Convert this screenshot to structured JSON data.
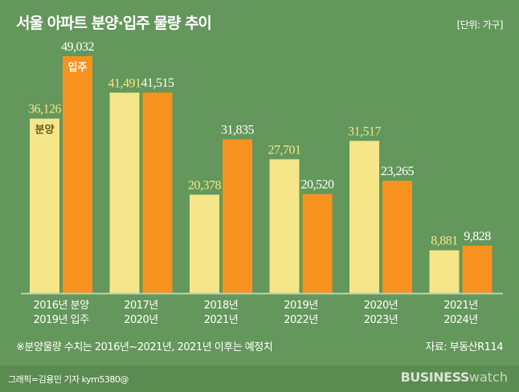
{
  "chart_data": {
    "type": "bar",
    "title": "서울 아파트 분양·입주 물량 추이",
    "unit": "[단위: 가구]",
    "categories": [
      [
        "2016년 분양",
        "2019년 입주"
      ],
      [
        "2017년",
        "2020년"
      ],
      [
        "2018년",
        "2021년"
      ],
      [
        "2019년",
        "2022년"
      ],
      [
        "2020년",
        "2023년"
      ],
      [
        "2021년",
        "2024년"
      ]
    ],
    "series": [
      {
        "name": "분양",
        "color": "#f5e68a",
        "values": [
          36126,
          41491,
          20378,
          27701,
          31517,
          8881
        ],
        "labels": [
          "36,126",
          "41,491",
          "20,378",
          "27,701",
          "31,517",
          "8,881"
        ]
      },
      {
        "name": "입주",
        "color": "#f7921e",
        "values": [
          49032,
          41515,
          31835,
          20520,
          23265,
          9828
        ],
        "labels": [
          "49,032",
          "41,515",
          "31,835",
          "20,520",
          "23,265",
          "9,828"
        ]
      }
    ],
    "ylim": [
      0,
      50000
    ],
    "grid": false,
    "legend": "inline labels on first bars"
  },
  "note": "※분양물량 수치는 2016년~2021년, 2021년 이후는 예정치",
  "source": "자료: 부동산R114",
  "credit": "그래픽=김용민 기자 kym5380@",
  "logo": {
    "bold": "BUSINESS",
    "light": "watch"
  },
  "colors": {
    "background": "#64975b",
    "footer": "#5a8b51",
    "axis": "#b9d3b0"
  }
}
